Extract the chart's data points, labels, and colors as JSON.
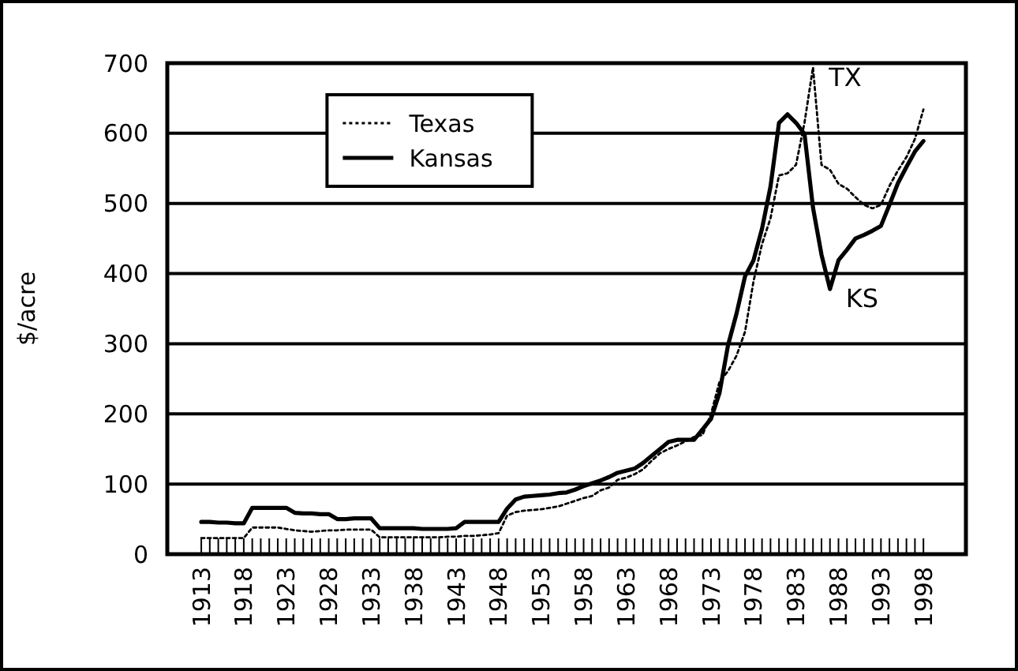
{
  "chart_data": {
    "type": "line",
    "ylabel": "$/acre",
    "x": [
      1913,
      1914,
      1915,
      1916,
      1917,
      1918,
      1919,
      1920,
      1921,
      1922,
      1923,
      1924,
      1925,
      1926,
      1927,
      1928,
      1929,
      1930,
      1931,
      1932,
      1933,
      1934,
      1935,
      1936,
      1937,
      1938,
      1939,
      1940,
      1941,
      1942,
      1943,
      1944,
      1945,
      1946,
      1947,
      1948,
      1949,
      1950,
      1951,
      1952,
      1953,
      1954,
      1955,
      1956,
      1957,
      1958,
      1959,
      1960,
      1961,
      1962,
      1963,
      1964,
      1965,
      1966,
      1967,
      1968,
      1969,
      1970,
      1971,
      1972,
      1973,
      1974,
      1975,
      1976,
      1977,
      1978,
      1979,
      1980,
      1981,
      1982,
      1983,
      1984,
      1985,
      1986,
      1987,
      1988,
      1989,
      1990,
      1991,
      1992,
      1993,
      1994,
      1995,
      1996,
      1997,
      1998
    ],
    "series": [
      {
        "name": "Texas",
        "color": "#000000",
        "line_style": "dotted",
        "values": [
          23,
          23,
          23,
          23,
          23,
          23,
          38,
          38,
          38,
          38,
          36,
          34,
          33,
          32,
          33,
          34,
          34,
          35,
          35,
          35,
          35,
          24,
          24,
          24,
          24,
          24,
          24,
          24,
          24,
          25,
          25,
          26,
          26,
          27,
          28,
          30,
          55,
          60,
          62,
          63,
          64,
          66,
          68,
          72,
          76,
          80,
          83,
          91,
          95,
          106,
          109,
          114,
          121,
          133,
          144,
          150,
          155,
          161,
          167,
          170,
          200,
          246,
          261,
          283,
          317,
          389,
          442,
          479,
          540,
          543,
          555,
          615,
          694,
          555,
          548,
          528,
          521,
          509,
          498,
          493,
          498,
          525,
          547,
          566,
          592,
          634
        ]
      },
      {
        "name": "Kansas",
        "color": "#000000",
        "line_style": "solid",
        "values": [
          46,
          46,
          45,
          45,
          44,
          44,
          66,
          66,
          66,
          66,
          66,
          59,
          58,
          58,
          57,
          57,
          50,
          50,
          51,
          51,
          51,
          37,
          37,
          37,
          37,
          37,
          36,
          36,
          36,
          36,
          37,
          46,
          46,
          46,
          46,
          46,
          65,
          78,
          82,
          83,
          84,
          85,
          87,
          88,
          92,
          97,
          101,
          105,
          110,
          116,
          119,
          122,
          130,
          140,
          150,
          160,
          163,
          163,
          163,
          178,
          193,
          230,
          298,
          343,
          396,
          419,
          464,
          524,
          615,
          627,
          615,
          599,
          494,
          427,
          378,
          419,
          434,
          450,
          455,
          461,
          468,
          498,
          529,
          552,
          574,
          589
        ]
      }
    ],
    "xlim": [
      1909,
      2003
    ],
    "xticks": [
      1913,
      1918,
      1923,
      1928,
      1933,
      1938,
      1943,
      1948,
      1953,
      1958,
      1963,
      1968,
      1973,
      1978,
      1983,
      1988,
      1993,
      1998
    ],
    "ylim": [
      0,
      700
    ],
    "yticks": [
      0,
      100,
      200,
      300,
      400,
      500,
      600,
      700
    ],
    "grid": "y",
    "legend": "top left",
    "marker": "none",
    "annotations": [
      {
        "text": "TX",
        "x": 1985,
        "y": 694
      },
      {
        "text": "KS",
        "x": 1987,
        "y": 378
      }
    ]
  }
}
